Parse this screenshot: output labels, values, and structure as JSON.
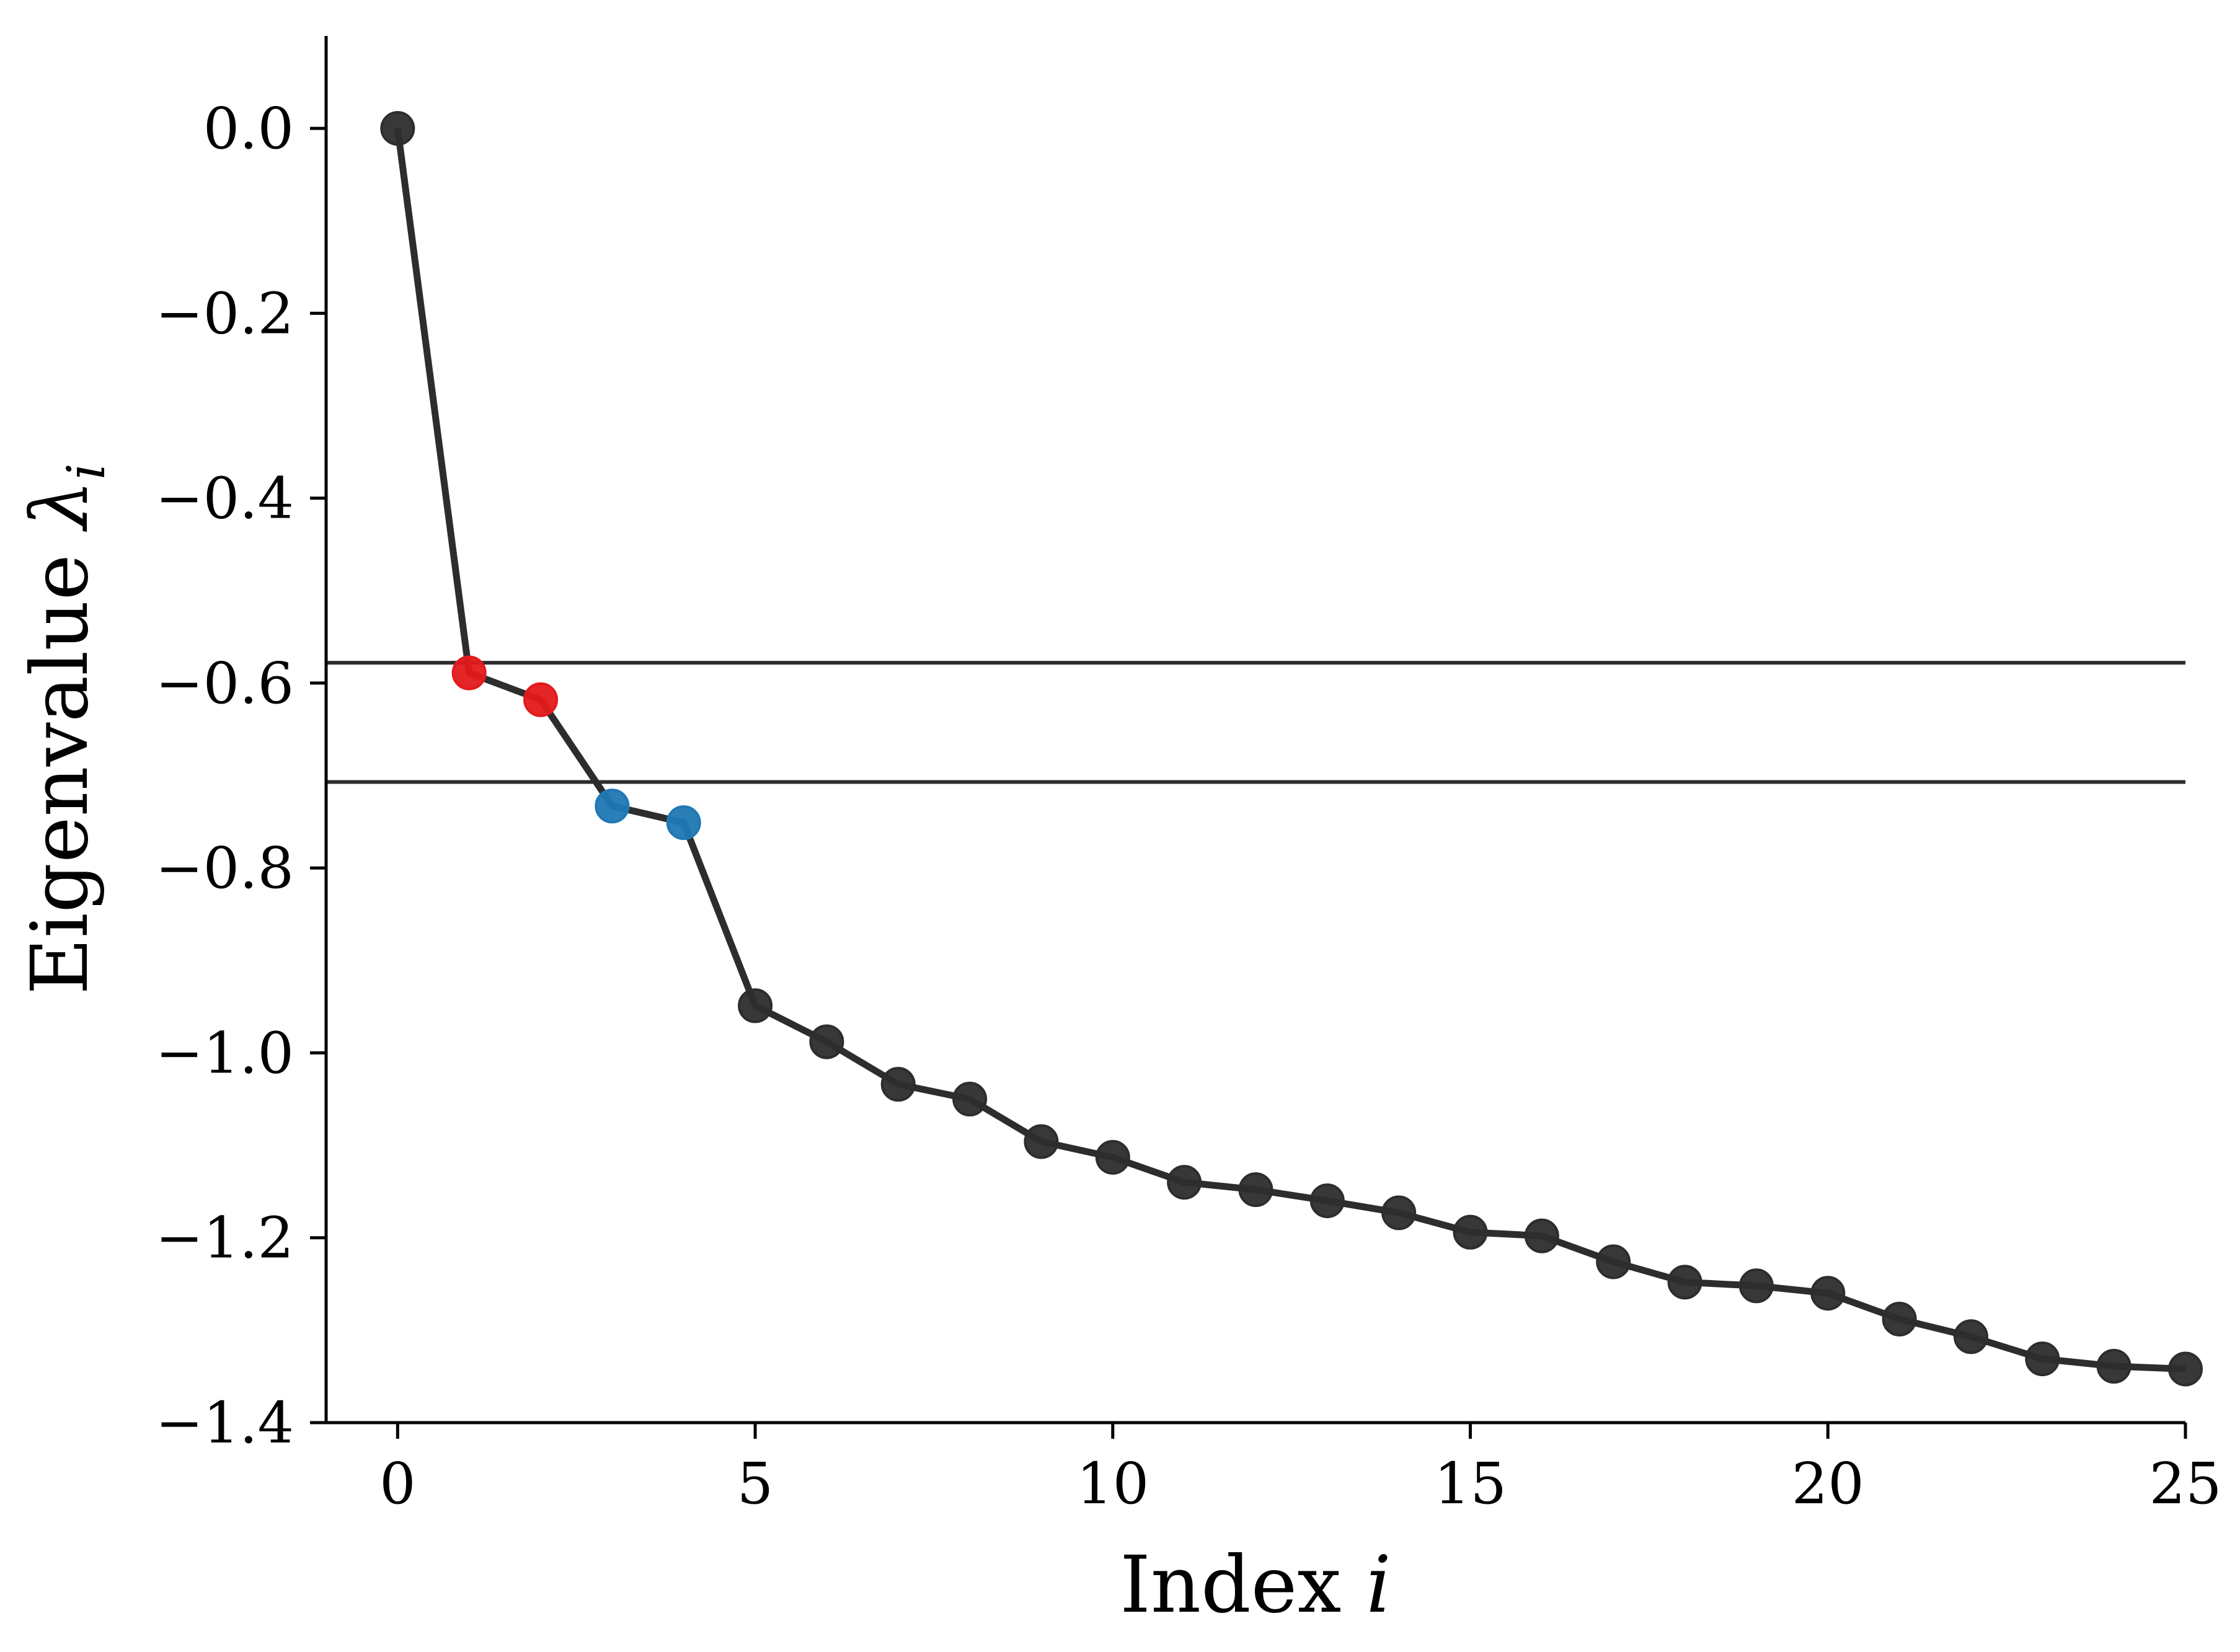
{
  "chart_data": {
    "type": "line",
    "title": "",
    "xlabel_text": "Index ",
    "xlabel_var": "i",
    "ylabel_text": "Eigenvalue ",
    "ylabel_var": "λ",
    "ylabel_sub": "i",
    "xlim": [
      -1,
      25
    ],
    "ylim": [
      -1.4,
      0.1
    ],
    "x_ticks": [
      0,
      5,
      10,
      15,
      20,
      25
    ],
    "x_tick_labels": [
      "0",
      "5",
      "10",
      "15",
      "20",
      "25"
    ],
    "y_ticks": [
      0.0,
      -0.2,
      -0.4,
      -0.6,
      -0.8,
      -1.0,
      -1.2,
      -1.4
    ],
    "y_tick_labels": [
      "0.0",
      "−0.2",
      "−0.4",
      "−0.6",
      "−0.8",
      "−1.0",
      "−1.2",
      "−1.4"
    ],
    "grid": false,
    "reference_lines_y": [
      -0.578,
      -0.707
    ],
    "series": [
      {
        "x": [
          0,
          1,
          2,
          3,
          4,
          5,
          6,
          7,
          8,
          9,
          10,
          11,
          12,
          13,
          14,
          15,
          16,
          17,
          18,
          19,
          20,
          21,
          22,
          23,
          24,
          25
        ],
        "y": [
          0.0,
          -0.589,
          -0.618,
          -0.733,
          -0.751,
          -0.949,
          -0.988,
          -1.034,
          -1.05,
          -1.096,
          -1.113,
          -1.14,
          -1.148,
          -1.16,
          -1.173,
          -1.194,
          -1.198,
          -1.226,
          -1.248,
          -1.252,
          -1.26,
          -1.288,
          -1.307,
          -1.331,
          -1.339,
          -1.342
        ],
        "color": "#2d2d2d",
        "point_colors": [
          "#2d2d2d",
          "#e31a1c",
          "#e31a1c",
          "#1f78b4",
          "#1f78b4",
          "#2d2d2d",
          "#2d2d2d",
          "#2d2d2d",
          "#2d2d2d",
          "#2d2d2d",
          "#2d2d2d",
          "#2d2d2d",
          "#2d2d2d",
          "#2d2d2d",
          "#2d2d2d",
          "#2d2d2d",
          "#2d2d2d",
          "#2d2d2d",
          "#2d2d2d",
          "#2d2d2d",
          "#2d2d2d",
          "#2d2d2d",
          "#2d2d2d",
          "#2d2d2d",
          "#2d2d2d",
          "#2d2d2d"
        ]
      }
    ]
  }
}
